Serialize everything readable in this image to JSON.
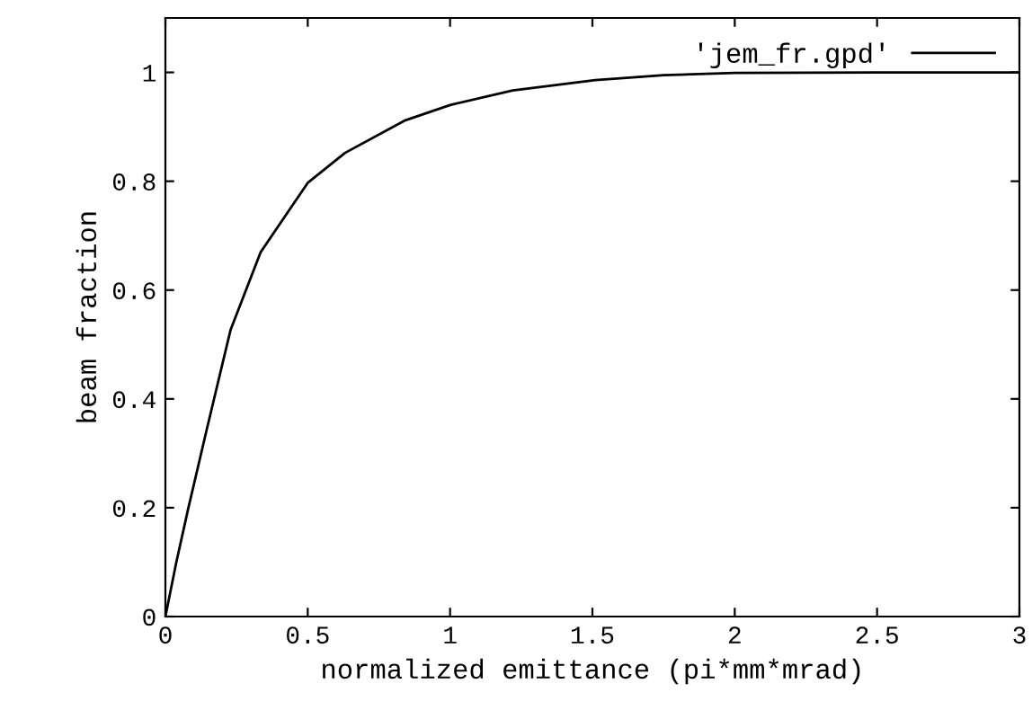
{
  "chart_data": {
    "type": "line",
    "xlabel": "normalized emittance (pi*mm*mrad)",
    "ylabel": "beam fraction",
    "x": [
      0,
      0.038,
      0.08,
      0.144,
      0.229,
      0.335,
      0.5,
      0.631,
      0.843,
      1.0,
      1.22,
      1.51,
      1.75,
      2.0,
      2.5,
      3.0
    ],
    "series": [
      {
        "name": "'jem_fr.gpd'",
        "color": "#000000",
        "values": [
          0,
          0.099,
          0.198,
          0.341,
          0.527,
          0.67,
          0.797,
          0.852,
          0.912,
          0.94,
          0.967,
          0.986,
          0.995,
          0.999,
          1.0,
          1.0
        ]
      }
    ],
    "xlim": [
      0,
      3
    ],
    "ylim": [
      0,
      1.1
    ],
    "xticks": [
      0,
      0.5,
      1,
      1.5,
      2,
      2.5,
      3
    ],
    "yticks": [
      0,
      0.2,
      0.4,
      0.6,
      0.8,
      1
    ],
    "grid": false,
    "legend": "top right",
    "marker": "none",
    "line_style": "solid"
  }
}
